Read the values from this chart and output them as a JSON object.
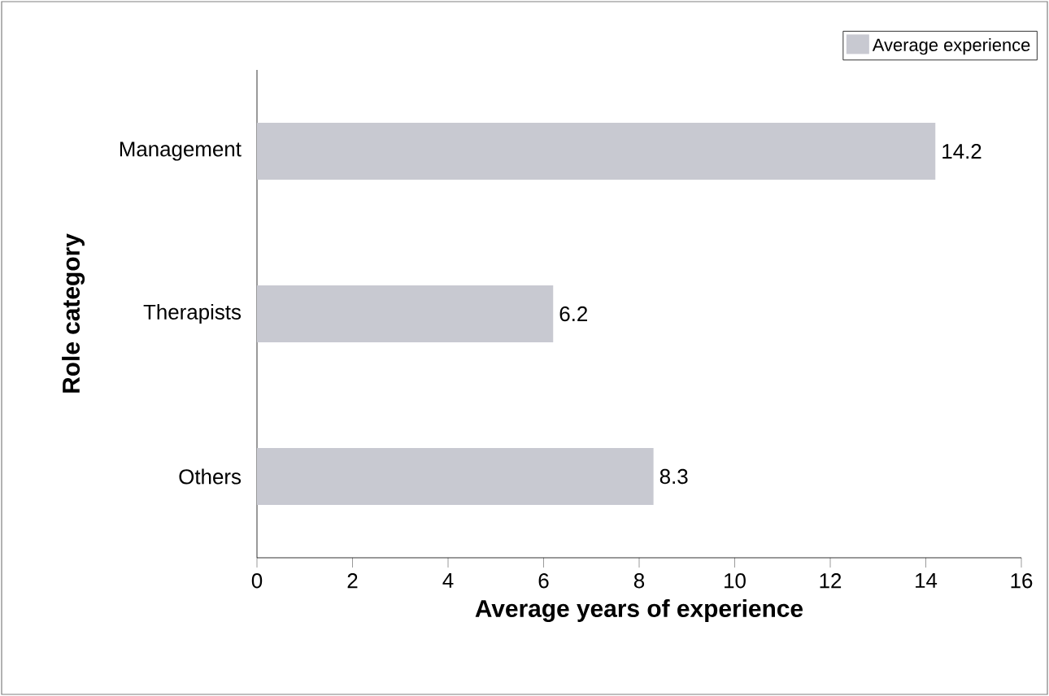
{
  "chart_data": {
    "type": "bar",
    "orientation": "horizontal",
    "xlabel": "Average years of experience",
    "ylabel": "Role category",
    "categories": [
      "Management",
      "Therapists",
      "Others"
    ],
    "series": [
      {
        "name": "Average experience",
        "color": "#c8c9d1",
        "values": [
          14.2,
          6.2,
          8.3
        ]
      }
    ],
    "xlim": [
      0,
      16
    ],
    "xticks": [
      0,
      2,
      4,
      6,
      8,
      10,
      12,
      14,
      16
    ],
    "data_labels": true,
    "legend": "top right"
  }
}
